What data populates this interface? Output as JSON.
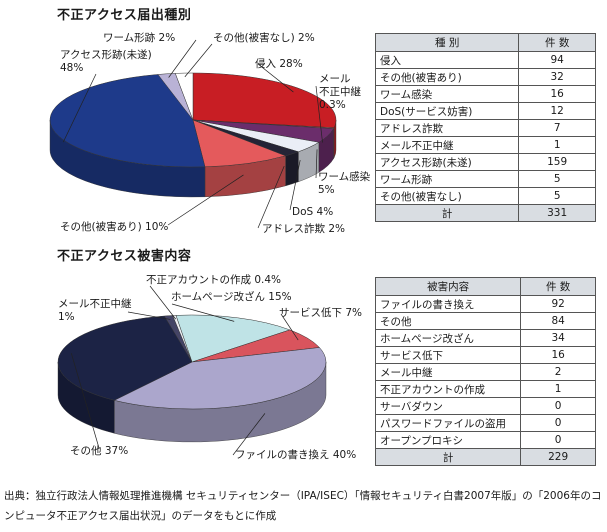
{
  "chart_data": [
    {
      "type": "pie",
      "title": "不正アクセス届出種別",
      "slices": [
        {
          "name": "侵入",
          "value": 28,
          "label": "侵入 28%",
          "color": "#c81e24"
        },
        {
          "name": "メール不正中継",
          "value": 0.3,
          "label": "メール\n不正中継\n0.3%",
          "color": "#e06a6e"
        },
        {
          "name": "ワーム感染",
          "value": 5,
          "label": "ワーム感染\n5%",
          "color": "#6b2d6b"
        },
        {
          "name": "DoS",
          "value": 4,
          "label": "DoS 4%",
          "color": "#eaeef6"
        },
        {
          "name": "アドレス詐欺",
          "value": 2,
          "label": "アドレス詐欺 2%",
          "color": "#242436"
        },
        {
          "name": "その他(被害あり)",
          "value": 10,
          "label": "その他(被害あり) 10%",
          "color": "#e45a5c"
        },
        {
          "name": "アクセス形跡(未遂)",
          "value": 48,
          "label": "アクセス形跡(未遂)\n48%",
          "color": "#1e3a8a"
        },
        {
          "name": "ワーム形跡",
          "value": 2,
          "label": "ワーム形跡 2%",
          "color": "#b9b2d6"
        },
        {
          "name": "その他(被害なし)",
          "value": 2,
          "label": "その他(被害なし) 2%",
          "color": "#ffffff"
        }
      ],
      "table": {
        "headers": [
          "種 別",
          "件 数"
        ],
        "rows": [
          [
            "侵入",
            "94"
          ],
          [
            "その他(被害あり)",
            "32"
          ],
          [
            "ワーム感染",
            "16"
          ],
          [
            "DoS(サービス妨害)",
            "12"
          ],
          [
            "アドレス詐欺",
            "7"
          ],
          [
            "メール不正中継",
            "1"
          ],
          [
            "アクセス形跡(未遂)",
            "159"
          ],
          [
            "ワーム形跡",
            "5"
          ],
          [
            "その他(被害なし)",
            "5"
          ]
        ],
        "total": [
          "計",
          "331"
        ]
      }
    },
    {
      "type": "pie",
      "title": "不正アクセス被害内容",
      "slices": [
        {
          "name": "ホームページ改ざん",
          "value": 15,
          "label": "ホームページ改ざん 15%",
          "color": "#bfe3e6"
        },
        {
          "name": "サービス低下",
          "value": 7,
          "label": "サービス低下 7%",
          "color": "#d9545d"
        },
        {
          "name": "ファイルの書き換え",
          "value": 40,
          "label": "ファイルの書き換え 40%",
          "color": "#aba6cc"
        },
        {
          "name": "その他",
          "value": 37,
          "label": "その他 37%",
          "color": "#1c2345"
        },
        {
          "name": "メール不正中継",
          "value": 1,
          "label": "メール不正中継\n1%",
          "color": "#444466"
        },
        {
          "name": "不正アカウントの作成",
          "value": 0.4,
          "label": "不正アカウントの作成 0.4%",
          "color": "#eceef4"
        }
      ],
      "table": {
        "headers": [
          "被害内容",
          "件 数"
        ],
        "rows": [
          [
            "ファイルの書き換え",
            "92"
          ],
          [
            "その他",
            "84"
          ],
          [
            "ホームページ改ざん",
            "34"
          ],
          [
            "サービス低下",
            "16"
          ],
          [
            "メール中継",
            "2"
          ],
          [
            "不正アカウントの作成",
            "1"
          ],
          [
            "サーバダウン",
            "0"
          ],
          [
            "パスワードファイルの盗用",
            "0"
          ],
          [
            "オープンプロキシ",
            "0"
          ]
        ],
        "total": [
          "計",
          "229"
        ]
      }
    }
  ],
  "source_note": "出典：独立行政法人情報処理推進機構 セキュリティセンター（IPA/ISEC）「情報セキュリティ白書2007年版」の「2006年のコンピュータ不正アクセス届出状況」のデータをもとに作成"
}
